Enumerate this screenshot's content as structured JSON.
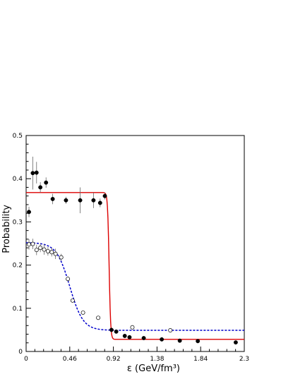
{
  "chart_data": {
    "type": "scatter",
    "xlabel": "ε (GeV/fm³)",
    "ylabel": "Probability",
    "xlim": [
      0,
      2.3
    ],
    "ylim": [
      0,
      0.5
    ],
    "x_ticks": [
      "0",
      "0.46",
      "0.92",
      "1.38",
      "1.84",
      "2.3"
    ],
    "y_ticks": [
      "0",
      "0.1",
      "0.2",
      "0.3",
      "0.4",
      "0.5"
    ],
    "grid": false,
    "legend": "none",
    "series": [
      {
        "marker": "filled-circle",
        "color": "#000000",
        "points": [
          {
            "x": 0.03,
            "y": 0.323,
            "err": 0.012
          },
          {
            "x": 0.07,
            "y": 0.413,
            "err": 0.038
          },
          {
            "x": 0.11,
            "y": 0.414,
            "err": 0.025
          },
          {
            "x": 0.15,
            "y": 0.38,
            "err": 0.012
          },
          {
            "x": 0.21,
            "y": 0.391,
            "err": 0.012
          },
          {
            "x": 0.28,
            "y": 0.353,
            "err": 0.012
          },
          {
            "x": 0.42,
            "y": 0.35,
            "err": 0.008
          },
          {
            "x": 0.57,
            "y": 0.35,
            "err": 0.03
          },
          {
            "x": 0.71,
            "y": 0.35,
            "err": 0.018
          },
          {
            "x": 0.78,
            "y": 0.344,
            "err": 0.01
          },
          {
            "x": 0.83,
            "y": 0.36,
            "err": 0.008
          },
          {
            "x": 0.9,
            "y": 0.05,
            "err": 0.005
          },
          {
            "x": 0.95,
            "y": 0.046,
            "err": 0.004
          },
          {
            "x": 1.04,
            "y": 0.036,
            "err": 0.003
          },
          {
            "x": 1.09,
            "y": 0.033,
            "err": 0.003
          },
          {
            "x": 1.24,
            "y": 0.031,
            "err": 0.003
          },
          {
            "x": 1.43,
            "y": 0.028,
            "err": 0.003
          },
          {
            "x": 1.62,
            "y": 0.025,
            "err": 0.003
          },
          {
            "x": 1.81,
            "y": 0.024,
            "err": 0.003
          },
          {
            "x": 2.21,
            "y": 0.021,
            "err": 0.003
          }
        ]
      },
      {
        "marker": "open-circle",
        "color": "#000000",
        "points": [
          {
            "x": 0.03,
            "y": 0.248,
            "err": 0.012
          },
          {
            "x": 0.07,
            "y": 0.249,
            "err": 0.012
          },
          {
            "x": 0.11,
            "y": 0.235,
            "err": 0.012
          },
          {
            "x": 0.15,
            "y": 0.24,
            "err": 0.01
          },
          {
            "x": 0.19,
            "y": 0.236,
            "err": 0.012
          },
          {
            "x": 0.23,
            "y": 0.232,
            "err": 0.01
          },
          {
            "x": 0.27,
            "y": 0.23,
            "err": 0.01
          },
          {
            "x": 0.31,
            "y": 0.226,
            "err": 0.012
          },
          {
            "x": 0.37,
            "y": 0.218,
            "err": 0.008
          },
          {
            "x": 0.44,
            "y": 0.168,
            "err": 0.006
          },
          {
            "x": 0.49,
            "y": 0.118,
            "err": 0.004
          },
          {
            "x": 0.6,
            "y": 0.09,
            "err": 0.004
          },
          {
            "x": 0.76,
            "y": 0.078,
            "err": 0.003
          },
          {
            "x": 1.12,
            "y": 0.056,
            "err": 0.003
          },
          {
            "x": 1.52,
            "y": 0.049,
            "err": 0.003
          }
        ]
      }
    ],
    "curves": [
      {
        "style": "solid",
        "color": "#dd0000",
        "high": 0.368,
        "low": 0.028,
        "center": 0.875,
        "width": 0.008
      },
      {
        "style": "dashed",
        "color": "#0000cc",
        "high": 0.252,
        "low": 0.049,
        "center": 0.46,
        "width": 0.07
      }
    ]
  }
}
